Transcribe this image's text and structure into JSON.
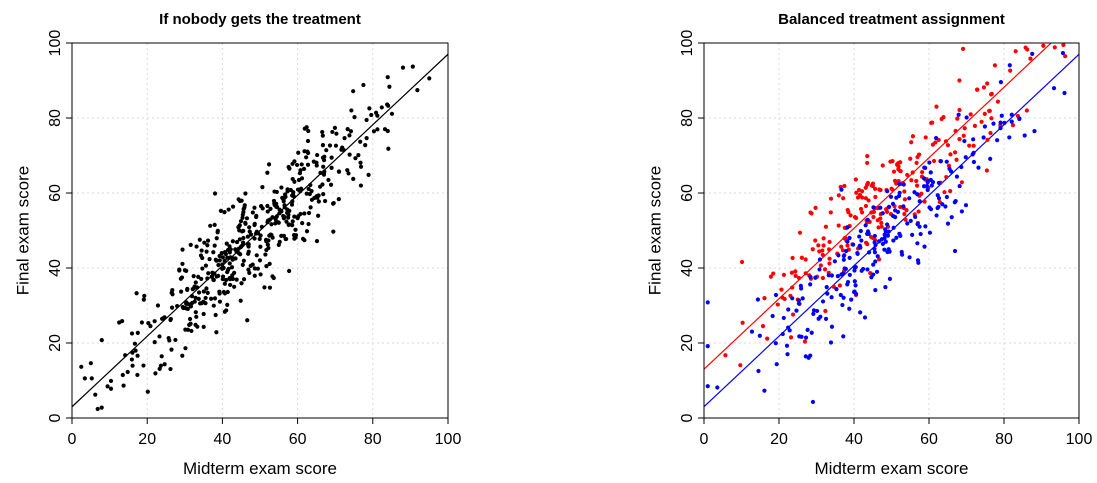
{
  "chart_data": [
    {
      "type": "scatter",
      "title": "If nobody gets the treatment",
      "xlabel": "Midterm exam score",
      "ylabel": "Final exam score",
      "xlim": [
        0,
        100
      ],
      "ylim": [
        0,
        100
      ],
      "xticks": [
        "0",
        "20",
        "40",
        "60",
        "80",
        "100"
      ],
      "yticks": [
        "0",
        "20",
        "40",
        "60",
        "80",
        "100"
      ],
      "grid": true,
      "series": [
        {
          "color": "#000000",
          "point_count": 500,
          "trend": {
            "slope": 0.94,
            "intercept": 3
          }
        }
      ],
      "lines": [
        {
          "color": "#000000",
          "x": [
            0,
            100
          ],
          "y": [
            3,
            97
          ]
        }
      ]
    },
    {
      "type": "scatter",
      "title": "Balanced treatment assignment",
      "xlabel": "Midterm exam score",
      "ylabel": "Final exam score",
      "xlim": [
        0,
        100
      ],
      "ylim": [
        0,
        100
      ],
      "xticks": [
        "0",
        "20",
        "40",
        "60",
        "80",
        "100"
      ],
      "yticks": [
        "0",
        "20",
        "40",
        "60",
        "80",
        "100"
      ],
      "grid": true,
      "series": [
        {
          "color": "#ff0000",
          "point_count": 250,
          "trend": {
            "slope": 0.94,
            "intercept": 13
          }
        },
        {
          "color": "#0000ff",
          "point_count": 250,
          "trend": {
            "slope": 0.94,
            "intercept": 3
          }
        }
      ],
      "lines": [
        {
          "color": "#ff0000",
          "x": [
            0,
            100
          ],
          "y": [
            13,
            107
          ]
        },
        {
          "color": "#0000ff",
          "x": [
            0,
            100
          ],
          "y": [
            3,
            97
          ]
        }
      ]
    }
  ]
}
